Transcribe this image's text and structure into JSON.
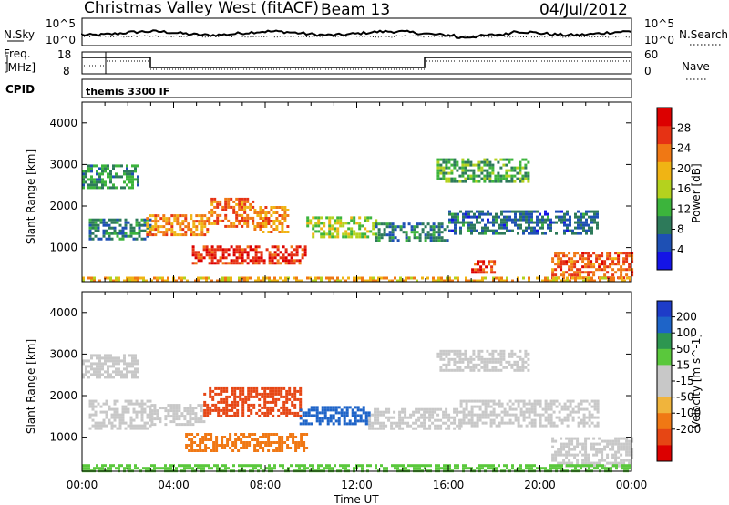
{
  "header": {
    "title": "Christmas Valley West (fitACF)",
    "beam": "Beam 13",
    "date": "04/Jul/2012"
  },
  "noise_panel": {
    "left_label": "N.Sky",
    "right_label": "N.Search",
    "left_ticks": [
      "10^5",
      "10^0"
    ],
    "right_ticks": [
      "10^5",
      "10^0"
    ]
  },
  "freq_panel": {
    "left_label_1": "Freq.",
    "left_label_2": "[MHz]",
    "right_label": "Nave",
    "left_ticks": [
      "18",
      "8"
    ],
    "right_ticks": [
      "60",
      "0"
    ]
  },
  "cpid_panel": {
    "label": "CPID",
    "text": "themis 3300 IF"
  },
  "colors": {
    "power": [
      "#1414e6",
      "#1e50b4",
      "#2d7a5a",
      "#3cb43c",
      "#b4d21e",
      "#f0b414",
      "#f07814",
      "#e63214",
      "#dc0000"
    ],
    "velocity": [
      "#1e3cc8",
      "#1e64c8",
      "#2d9650",
      "#5ac83c",
      "#c8c8c8",
      "#c8c8c8",
      "#f0b43c",
      "#f07814",
      "#e64614",
      "#dc0000"
    ]
  },
  "chart_data": [
    {
      "type": "heatmap",
      "name": "power",
      "xlabel": "Time UT",
      "ylabel": "Slant Range [km]",
      "x_ticks": [
        "00:00",
        "04:00",
        "08:00",
        "12:00",
        "16:00",
        "20:00",
        "00:00"
      ],
      "x_range_hours": [
        0,
        24
      ],
      "y_ticks": [
        1000,
        2000,
        3000,
        4000
      ],
      "y_range": [
        180,
        4500
      ],
      "colorbar_label": "Power [dB]",
      "colorbar_ticks": [
        4,
        8,
        12,
        16,
        20,
        24,
        28
      ],
      "colorbar_range": [
        0,
        32
      ],
      "regions": [
        {
          "t0": 0.0,
          "t1": 2.5,
          "r0": 2450,
          "r1": 3000,
          "v": 10
        },
        {
          "t0": 0.3,
          "t1": 3.0,
          "r0": 1200,
          "r1": 1700,
          "v": 9
        },
        {
          "t0": 2.8,
          "t1": 5.5,
          "r0": 1300,
          "r1": 1800,
          "v": 22
        },
        {
          "t0": 5.5,
          "t1": 7.5,
          "r0": 1500,
          "r1": 2200,
          "v": 24
        },
        {
          "t0": 7.5,
          "t1": 9.0,
          "r0": 1400,
          "r1": 2000,
          "v": 22
        },
        {
          "t0": 4.8,
          "t1": 9.8,
          "r0": 650,
          "r1": 1050,
          "v": 27
        },
        {
          "t0": 9.8,
          "t1": 12.8,
          "r0": 1250,
          "r1": 1750,
          "v": 15
        },
        {
          "t0": 12.8,
          "t1": 16.0,
          "r0": 1200,
          "r1": 1600,
          "v": 8
        },
        {
          "t0": 15.5,
          "t1": 19.5,
          "r0": 2600,
          "r1": 3150,
          "v": 12
        },
        {
          "t0": 16.0,
          "t1": 22.5,
          "r0": 1350,
          "r1": 1900,
          "v": 7
        },
        {
          "t0": 17.0,
          "t1": 18.0,
          "r0": 400,
          "r1": 700,
          "v": 26
        },
        {
          "t0": 20.5,
          "t1": 24.0,
          "r0": 300,
          "r1": 900,
          "v": 25
        },
        {
          "t0": 0.0,
          "t1": 24.0,
          "r0": 180,
          "r1": 300,
          "v": 20
        }
      ]
    },
    {
      "type": "heatmap",
      "name": "velocity",
      "xlabel": "Time UT",
      "ylabel": "Slant Range [km]",
      "x_ticks": [
        "00:00",
        "04:00",
        "08:00",
        "12:00",
        "16:00",
        "20:00",
        "00:00"
      ],
      "x_range_hours": [
        0,
        24
      ],
      "y_ticks": [
        1000,
        2000,
        3000,
        4000
      ],
      "y_range": [
        180,
        4500
      ],
      "colorbar_label": "Velocity [m s^-1]",
      "colorbar_ticks": [
        200,
        100,
        50,
        15,
        -15,
        -50,
        -100,
        -200
      ],
      "regions": [
        {
          "t0": 0.0,
          "t1": 2.5,
          "r0": 2450,
          "r1": 3000,
          "v": 0
        },
        {
          "t0": 0.3,
          "t1": 3.0,
          "r0": 1200,
          "r1": 1900,
          "v": 0
        },
        {
          "t0": 3.0,
          "t1": 5.3,
          "r0": 1300,
          "r1": 1800,
          "v": 0
        },
        {
          "t0": 5.3,
          "t1": 9.5,
          "r0": 1500,
          "r1": 2200,
          "v": -180
        },
        {
          "t0": 9.5,
          "t1": 12.5,
          "r0": 1300,
          "r1": 1750,
          "v": 150
        },
        {
          "t0": 4.5,
          "t1": 9.8,
          "r0": 650,
          "r1": 1100,
          "v": -60
        },
        {
          "t0": 12.5,
          "t1": 16.5,
          "r0": 1200,
          "r1": 1700,
          "v": 0
        },
        {
          "t0": 15.5,
          "t1": 19.5,
          "r0": 2600,
          "r1": 3100,
          "v": 0
        },
        {
          "t0": 16.5,
          "t1": 22.5,
          "r0": 1300,
          "r1": 1900,
          "v": 0
        },
        {
          "t0": 20.5,
          "t1": 24.0,
          "r0": 300,
          "r1": 1000,
          "v": 0
        },
        {
          "t0": 0.0,
          "t1": 24.0,
          "r0": 180,
          "r1": 350,
          "v": 30
        }
      ]
    }
  ]
}
